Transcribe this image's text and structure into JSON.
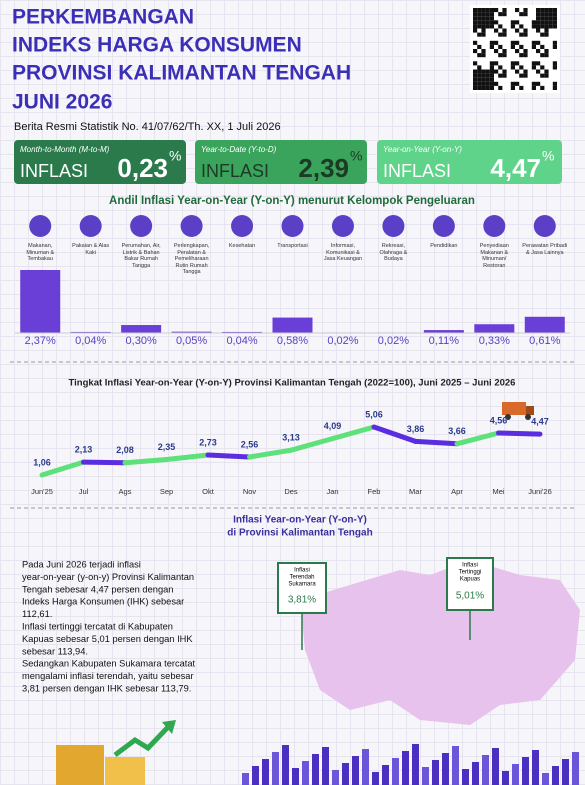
{
  "header": {
    "title_lines": [
      "PERKEMBANGAN",
      "INDEKS HARGA KONSUMEN",
      "PROVINSI KALIMANTAN TENGAH",
      "JUNI 2026"
    ],
    "subtitle": "Berita Resmi Statistik No. 41/07/62/Th. XX, 1 Juli 2026"
  },
  "cards": [
    {
      "period": "Month-to-Month (M-to-M)",
      "label": "INFLASI",
      "value": "0,23",
      "unit": "%"
    },
    {
      "period": "Year-to-Date (Y-to-D)",
      "label": "INFLASI",
      "value": "2,39",
      "unit": "%"
    },
    {
      "period": "Year-on-Year (Y-on-Y)",
      "label": "INFLASI",
      "value": "4,47",
      "unit": "%"
    }
  ],
  "chart_data": [
    {
      "type": "bar",
      "title": "Andil Inflasi Year-on-Year (Y-on-Y) menurut Kelompok Pengeluaran",
      "categories": [
        "Makanan, Minuman & Tembakau",
        "Pakaian & Alas Kaki",
        "Perumahan, Air, Listrik & Bahan Bakar Rumah Tangga",
        "Perlengkapan, Peralatan & Pemeliharaan Rutin Rumah Tangga",
        "Kesehatan",
        "Transportasi",
        "Informasi, Komunikasi & Jasa Keuangan",
        "Rekreasi, Olahraga & Budaya",
        "Pendidikan",
        "Penyediaan Makanan & Minuman/ Restoran",
        "Perawatan Pribadi & Jasa Lainnya"
      ],
      "values": [
        2.37,
        0.04,
        0.3,
        0.05,
        0.04,
        0.58,
        0.02,
        0.02,
        0.11,
        0.33,
        0.61
      ],
      "value_labels": [
        "2,37%",
        "0,04%",
        "0,30%",
        "0,05%",
        "0,04%",
        "0,58%",
        "0,02%",
        "0,02%",
        "0,11%",
        "0,33%",
        "0,61%"
      ],
      "color": "#6a3fd8"
    },
    {
      "type": "line",
      "title": "Tingkat Inflasi Year-on-Year (Y-on-Y) Provinsi Kalimantan Tengah (2022=100), Juni 2025 – Juni 2026",
      "categories": [
        "Jun'25",
        "Jul",
        "Ags",
        "Sep",
        "Okt",
        "Nov",
        "Des",
        "Jan",
        "Feb",
        "Mar",
        "Apr",
        "Mei",
        "Juni'26"
      ],
      "values": [
        1.06,
        2.13,
        2.08,
        2.35,
        2.73,
        2.56,
        3.13,
        4.09,
        5.06,
        3.86,
        3.66,
        4.56,
        4.47
      ],
      "value_labels": [
        "1,06",
        "2,13",
        "2,08",
        "2,35",
        "2,73",
        "2,56",
        "3,13",
        "4,09",
        "5,06",
        "3,86",
        "3,66",
        "4,56",
        "4,47"
      ],
      "colors": {
        "rise": "#5ee07a",
        "fall": "#5a2de0"
      }
    }
  ],
  "map": {
    "title_lines": [
      "Inflasi Year-on-Year (Y-on-Y)",
      "di Provinsi Kalimantan Tengah"
    ],
    "paragraph": [
      "Pada Juni 2026 terjadi inflasi",
      "year-on-year (y-on-y) Provinsi Kalimantan",
      "Tengah sebesar 4,47 persen dengan",
      "Indeks Harga  Konsumen (IHK) sebesar",
      "112,61.",
      "Inflasi tertinggi tercatat di Kabupaten",
      "Kapuas sebesar 5,01 persen dengan IHK",
      "sebesar 113,94.",
      "Sedangkan Kabupaten Sukamara tercatat",
      "mengalami inflasi terendah, yaitu sebesar",
      "3,81 persen dengan IHK sebesar 113,79."
    ],
    "callouts": [
      {
        "lines": [
          "Inflasi",
          "Terendah",
          "Sukamara"
        ],
        "value": "3,81%"
      },
      {
        "lines": [
          "Inflasi",
          "Tertinggi",
          "Kapuas"
        ],
        "value": "5,01%"
      }
    ]
  }
}
